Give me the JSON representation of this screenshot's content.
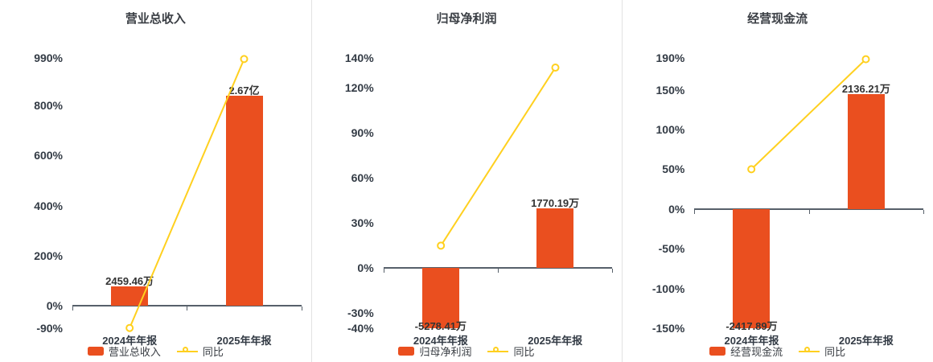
{
  "colors": {
    "bar": "#ea4f1f",
    "line": "#ffd01f",
    "axis_line": "#57606a",
    "tick_text": "#333b45",
    "title_text": "#3a3e44",
    "label_text": "#333333",
    "legend_text": "#3a3e44",
    "divider": "#e2e2e2",
    "background": "#ffffff"
  },
  "chart_data": [
    {
      "id": "operating-revenue",
      "type": "bar+line",
      "title": "营业总收入",
      "categories": [
        "2024年年报",
        "2025年年报"
      ],
      "bar_series": {
        "name": "营业总收入",
        "unit": "万元",
        "values": [
          2459.46,
          26700
        ],
        "labels": [
          "2459.46万",
          "2.67亿"
        ]
      },
      "line_series": {
        "name": "同比",
        "unit": "%",
        "values": [
          -89,
          985.59
        ]
      },
      "y_axis": {
        "min": -90,
        "max": 990,
        "ticks": [
          {
            "value": 990,
            "label": "990%"
          },
          {
            "value": 800,
            "label": "800%"
          },
          {
            "value": 600,
            "label": "600%"
          },
          {
            "value": 400,
            "label": "400%"
          },
          {
            "value": 200,
            "label": "200%"
          },
          {
            "value": 0,
            "label": "0%"
          },
          {
            "value": -90,
            "label": "-90%"
          }
        ]
      },
      "bar_axis_full_scale": 34400,
      "legend": {
        "position": "bottom",
        "items": [
          "营业总收入",
          "同比"
        ]
      },
      "grid": false
    },
    {
      "id": "net-profit",
      "type": "bar+line",
      "title": "归母净利润",
      "categories": [
        "2024年年报",
        "2025年年报"
      ],
      "bar_series": {
        "name": "归母净利润",
        "unit": "万元",
        "values": [
          -5278.41,
          1770.19
        ],
        "labels": [
          "-5278.41万",
          "1770.19万"
        ]
      },
      "line_series": {
        "name": "同比",
        "unit": "%",
        "values": [
          15,
          133.54
        ]
      },
      "y_axis": {
        "min": -40,
        "max": 140,
        "ticks": [
          {
            "value": 140,
            "label": "140%"
          },
          {
            "value": 120,
            "label": "120%"
          },
          {
            "value": 90,
            "label": "90%"
          },
          {
            "value": 60,
            "label": "60%"
          },
          {
            "value": 30,
            "label": "30%"
          },
          {
            "value": 0,
            "label": "0%"
          },
          {
            "value": -30,
            "label": "-30%"
          },
          {
            "value": -40,
            "label": "-40%"
          }
        ]
      },
      "bar_axis_full_scale": 8040,
      "legend": {
        "position": "bottom",
        "items": [
          "归母净利润",
          "同比"
        ]
      },
      "grid": false
    },
    {
      "id": "operating-cash-flow",
      "type": "bar+line",
      "title": "经营现金流",
      "categories": [
        "2024年年报",
        "2025年年报"
      ],
      "bar_series": {
        "name": "经营现金流",
        "unit": "万元",
        "values": [
          -2417.89,
          2136.21
        ],
        "labels": [
          "-2417.89万",
          "2136.21万"
        ]
      },
      "line_series": {
        "name": "同比",
        "unit": "%",
        "values": [
          50,
          188.35
        ]
      },
      "y_axis": {
        "min": -150,
        "max": 190,
        "ticks": [
          {
            "value": 190,
            "label": "190%"
          },
          {
            "value": 150,
            "label": "150%"
          },
          {
            "value": 100,
            "label": "100%"
          },
          {
            "value": 50,
            "label": "50%"
          },
          {
            "value": 0,
            "label": "0%"
          },
          {
            "value": -50,
            "label": "-50%"
          },
          {
            "value": -100,
            "label": "-100%"
          },
          {
            "value": -150,
            "label": "-150%"
          }
        ]
      },
      "bar_axis_full_scale": 5020,
      "legend": {
        "position": "bottom",
        "items": [
          "经营现金流",
          "同比"
        ]
      },
      "grid": false
    }
  ]
}
